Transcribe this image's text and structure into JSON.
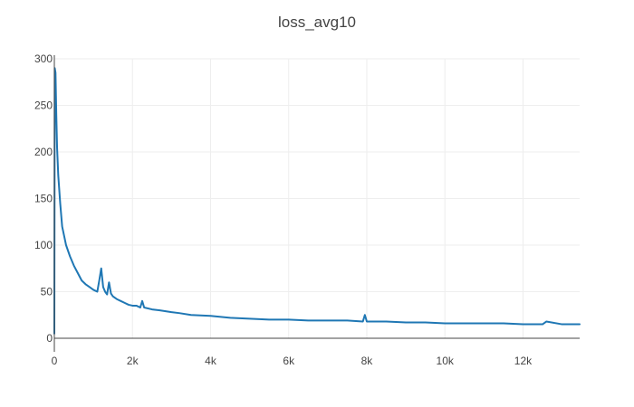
{
  "chart_data": {
    "type": "line",
    "title": "loss_avg10",
    "xlabel": "",
    "ylabel": "",
    "xlim": [
      0,
      13450
    ],
    "ylim": [
      0,
      300
    ],
    "grid": true,
    "legend": "none",
    "x_ticks": [
      {
        "value": 0,
        "label": "0"
      },
      {
        "value": 2000,
        "label": "2k"
      },
      {
        "value": 4000,
        "label": "4k"
      },
      {
        "value": 6000,
        "label": "6k"
      },
      {
        "value": 8000,
        "label": "8k"
      },
      {
        "value": 10000,
        "label": "10k"
      },
      {
        "value": 12000,
        "label": "12k"
      }
    ],
    "y_ticks": [
      {
        "value": 0,
        "label": "0"
      },
      {
        "value": 50,
        "label": "50"
      },
      {
        "value": 100,
        "label": "100"
      },
      {
        "value": 150,
        "label": "150"
      },
      {
        "value": 200,
        "label": "200"
      },
      {
        "value": 250,
        "label": "250"
      },
      {
        "value": 300,
        "label": "300"
      }
    ],
    "series": [
      {
        "color": "#1f77b4",
        "x": [
          0,
          10,
          30,
          50,
          70,
          100,
          150,
          200,
          250,
          300,
          400,
          500,
          600,
          700,
          800,
          900,
          1000,
          1100,
          1150,
          1200,
          1250,
          1300,
          1350,
          1400,
          1450,
          1500,
          1600,
          1700,
          1800,
          1900,
          2000,
          2100,
          2200,
          2250,
          2300,
          2500,
          2700,
          3000,
          3200,
          3500,
          4000,
          4500,
          5000,
          5500,
          6000,
          6500,
          7000,
          7500,
          7900,
          7950,
          8000,
          8500,
          9000,
          9500,
          10000,
          10500,
          11000,
          11500,
          12000,
          12500,
          12600,
          13000,
          13450
        ],
        "y": [
          5,
          290,
          285,
          240,
          205,
          175,
          145,
          120,
          110,
          100,
          88,
          78,
          70,
          62,
          58,
          55,
          52,
          50,
          62,
          75,
          55,
          50,
          47,
          60,
          48,
          45,
          42,
          40,
          38,
          36,
          35,
          35,
          33,
          40,
          33,
          31,
          30,
          28,
          27,
          25,
          24,
          22,
          21,
          20,
          20,
          19,
          19,
          19,
          18,
          25,
          18,
          18,
          17,
          17,
          16,
          16,
          16,
          16,
          15,
          15,
          18,
          15,
          15
        ]
      }
    ]
  }
}
